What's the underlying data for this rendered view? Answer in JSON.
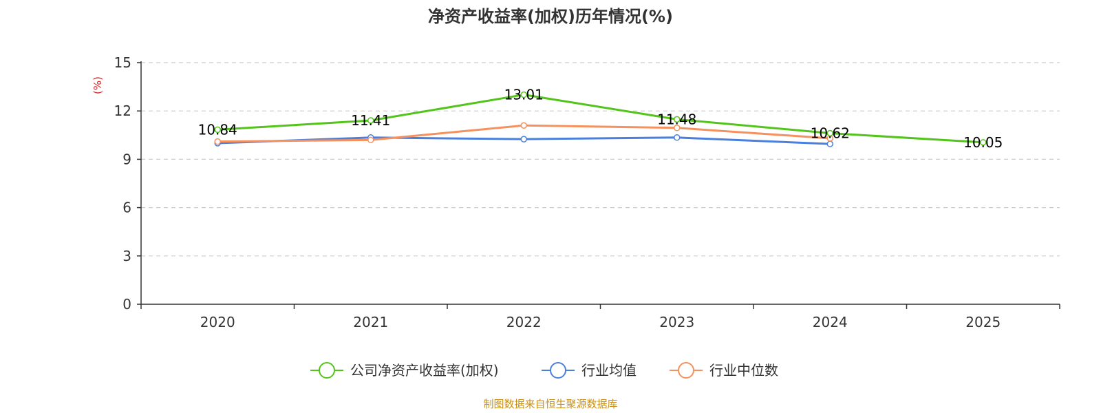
{
  "chart_data": {
    "type": "line",
    "title": "净资产收益率(加权)历年情况(%)",
    "ylabel": "(%)",
    "xlabel": "",
    "categories": [
      "2020",
      "2021",
      "2022",
      "2023",
      "2024",
      "2025"
    ],
    "ylim": [
      0,
      15
    ],
    "yticks": [
      0,
      3,
      6,
      9,
      12,
      15
    ],
    "grid": true,
    "legend_position": "bottom",
    "series": [
      {
        "name": "公司净资产收益率(加权)",
        "color": "#52c41a",
        "values": [
          10.84,
          11.41,
          13.01,
          11.48,
          10.62,
          10.05
        ],
        "labels": [
          "10.84",
          "11.41",
          "13.01",
          "11.48",
          "10.62",
          "10.05"
        ]
      },
      {
        "name": "行业均值",
        "color": "#4a7fdb",
        "values": [
          10.0,
          10.35,
          10.25,
          10.35,
          9.95,
          null
        ]
      },
      {
        "name": "行业中位数",
        "color": "#f5915f",
        "values": [
          10.1,
          10.2,
          11.1,
          10.95,
          10.3,
          null
        ]
      }
    ],
    "source": "制图数据来自恒生聚源数据库",
    "unit_color": "#e02020",
    "source_color": "#c8901a"
  }
}
